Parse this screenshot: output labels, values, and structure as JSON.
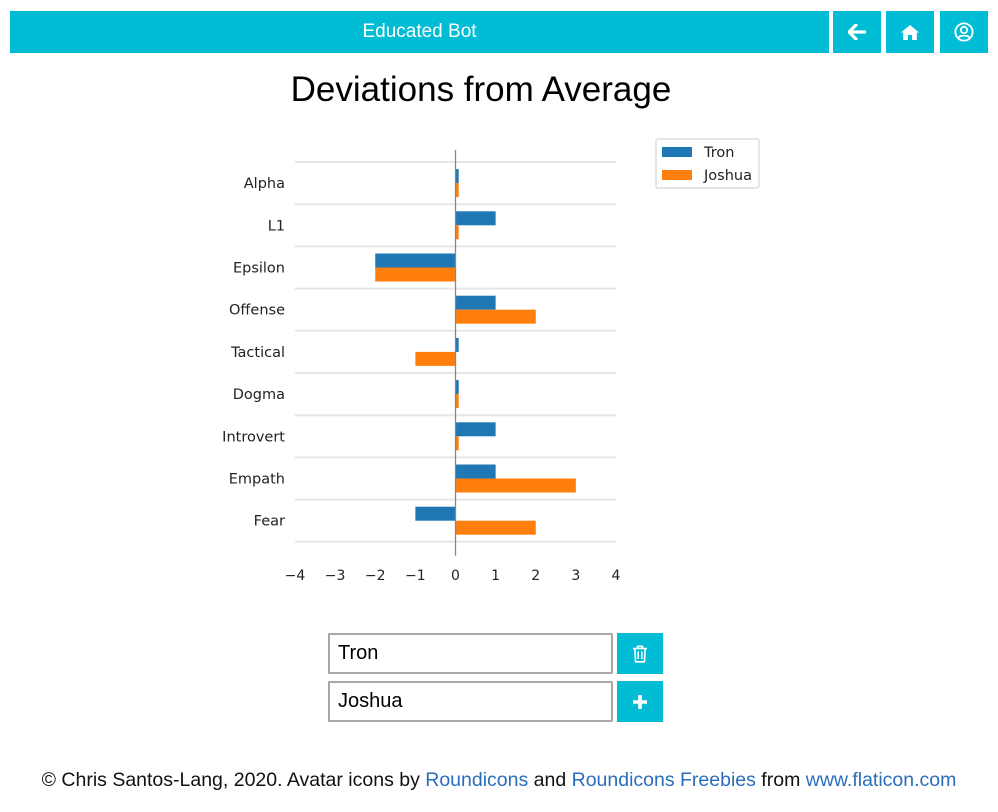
{
  "header": {
    "app_title": "Educated Bot",
    "buttons": [
      {
        "name": "back",
        "icon": "arrow-left-icon"
      },
      {
        "name": "home",
        "icon": "home-icon"
      },
      {
        "name": "account",
        "icon": "user-circle-icon"
      }
    ],
    "accent_color": "#00bcd4"
  },
  "page": {
    "title": "Deviations from Average"
  },
  "chart_data": {
    "type": "bar",
    "orientation": "horizontal",
    "categories": [
      "Alpha",
      "L1",
      "Epsilon",
      "Offense",
      "Tactical",
      "Dogma",
      "Introvert",
      "Empath",
      "Fear"
    ],
    "series": [
      {
        "name": "Tron",
        "color": "#1f77b4",
        "values": [
          0,
          1,
          -2,
          1,
          0,
          0,
          1,
          1,
          -1
        ]
      },
      {
        "name": "Joshua",
        "color": "#ff7f0e",
        "values": [
          0,
          0,
          -2,
          2,
          -1,
          0,
          0,
          3,
          2
        ]
      }
    ],
    "xlim": [
      -4,
      4
    ],
    "xticks": [
      "−4",
      "−3",
      "−2",
      "−1",
      "0",
      "1",
      "2",
      "3",
      "4"
    ],
    "grid": "horizontal",
    "legend_position": "upper-right"
  },
  "comparison": {
    "inputs": [
      {
        "value": "Tron",
        "action": "delete",
        "icon": "trash-icon"
      },
      {
        "value": "Joshua",
        "action": "add",
        "icon": "plus-icon"
      }
    ]
  },
  "footer": {
    "prefix": "© Chris Santos-Lang, 2020. Avatar icons by ",
    "link1": "Roundicons",
    "and": " and ",
    "link2": "Roundicons Freebies",
    "from": " from ",
    "link3": "www.flaticon.com"
  }
}
